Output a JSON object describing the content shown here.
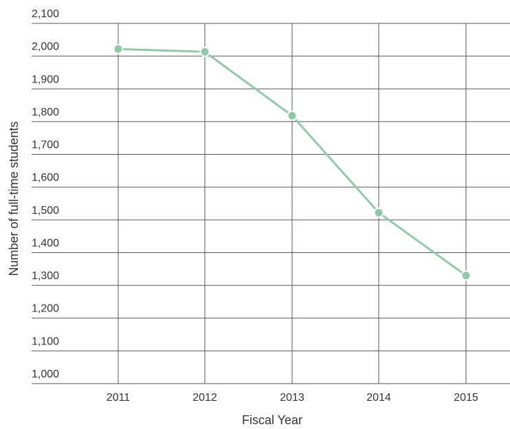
{
  "chart_data": {
    "type": "line",
    "title": "",
    "xlabel": "Fiscal Year",
    "ylabel": "Number of full-time students",
    "categories": [
      "2011",
      "2012",
      "2013",
      "2014",
      "2015"
    ],
    "series": [
      {
        "values": [
          2022,
          2013,
          1818,
          1522,
          1330
        ]
      }
    ],
    "ylim": [
      1000,
      2100
    ],
    "yticks": [
      1000,
      1100,
      1200,
      1300,
      1400,
      1500,
      1600,
      1700,
      1800,
      1900,
      2000,
      2100
    ],
    "ytick_labels": [
      "1,000",
      "1,100",
      "1,200",
      "1,300",
      "1,400",
      "1,500",
      "1,600",
      "1,700",
      "1,800",
      "1,900",
      "2,000",
      "2,100"
    ],
    "grid": true,
    "legend": "none",
    "colors": {
      "series": "#8ecaa8",
      "grid": "#555555",
      "text": "#333333"
    }
  }
}
